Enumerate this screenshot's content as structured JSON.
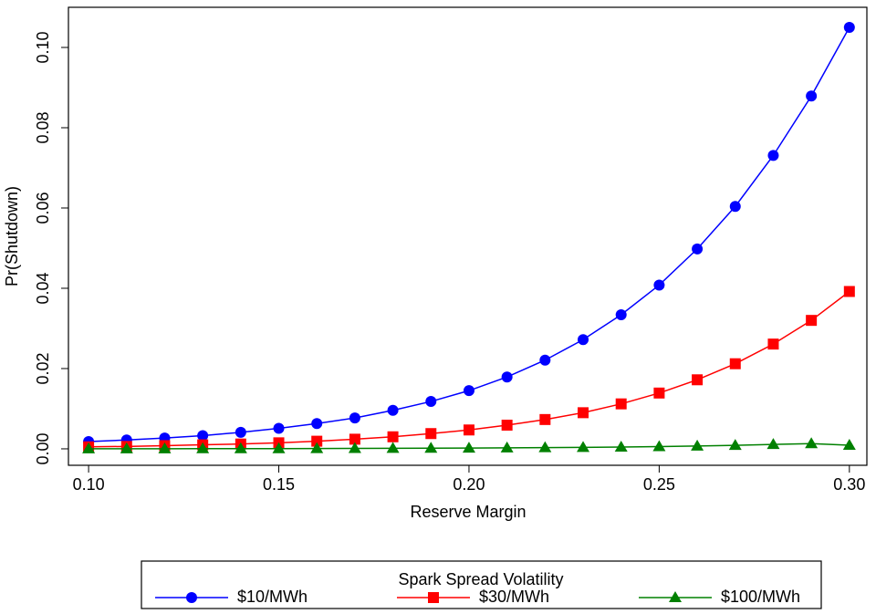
{
  "chart_data": {
    "type": "line",
    "x_label": "Reserve Margin",
    "y_label": "Pr(Shutdown)",
    "x": [
      0.1,
      0.11,
      0.12,
      0.13,
      0.14,
      0.15,
      0.16,
      0.17,
      0.18,
      0.19,
      0.2,
      0.21,
      0.22,
      0.23,
      0.24,
      0.25,
      0.26,
      0.27,
      0.28,
      0.29,
      0.3
    ],
    "series": [
      {
        "name": "$10/MWh",
        "color": "#0000ff",
        "marker": "circle",
        "values": [
          0.0018,
          0.0022,
          0.0027,
          0.0033,
          0.0041,
          0.0051,
          0.0063,
          0.0077,
          0.0096,
          0.0118,
          0.0145,
          0.0179,
          0.0221,
          0.0272,
          0.0334,
          0.0408,
          0.0498,
          0.0604,
          0.0731,
          0.0879,
          0.105
        ]
      },
      {
        "name": "$30/MWh",
        "color": "#ff0000",
        "marker": "square",
        "values": [
          0.0005,
          0.0006,
          0.0008,
          0.001,
          0.0012,
          0.0015,
          0.0019,
          0.0024,
          0.003,
          0.0038,
          0.0047,
          0.0059,
          0.0073,
          0.009,
          0.0112,
          0.0139,
          0.0172,
          0.0212,
          0.0261,
          0.032,
          0.0392
        ]
      },
      {
        "name": "$100/MWh",
        "color": "#008000",
        "marker": "triangle",
        "values": [
          2e-05,
          2e-05,
          3e-05,
          4e-05,
          5e-05,
          6e-05,
          8e-05,
          0.0001,
          0.00012,
          0.00015,
          0.00019,
          0.00024,
          0.0003,
          0.00037,
          0.00046,
          0.00057,
          0.0007,
          0.00087,
          0.0011,
          0.0013,
          0.0009
        ]
      }
    ],
    "xlim": [
      0.0947,
      0.3046
    ],
    "ylim": [
      -0.0041,
      0.11
    ],
    "xticks": [
      {
        "value": 0.1,
        "label": "0.10"
      },
      {
        "value": 0.15,
        "label": "0.15"
      },
      {
        "value": 0.2,
        "label": "0.20"
      },
      {
        "value": 0.25,
        "label": "0.25"
      },
      {
        "value": 0.3,
        "label": "0.30"
      }
    ],
    "yticks": [
      {
        "value": 0,
        "label": "0.00"
      },
      {
        "value": 0.02,
        "label": "0.02"
      },
      {
        "value": 0.04,
        "label": "0.04"
      },
      {
        "value": 0.06,
        "label": "0.06"
      },
      {
        "value": 0.08,
        "label": "0.08"
      },
      {
        "value": 0.1,
        "label": "0.10"
      }
    ],
    "legend_title": "Spark Spread Volatility",
    "legend_position": "bottom"
  }
}
